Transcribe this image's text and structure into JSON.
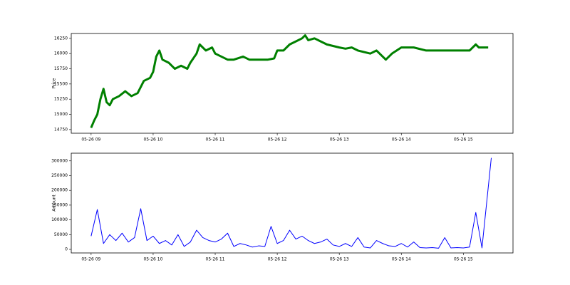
{
  "chart_data": [
    {
      "type": "line",
      "y_label": "Price",
      "x": [
        9.0,
        9.05,
        9.1,
        9.15,
        9.2,
        9.25,
        9.3,
        9.35,
        9.45,
        9.55,
        9.65,
        9.75,
        9.85,
        9.95,
        10.0,
        10.05,
        10.1,
        10.15,
        10.25,
        10.35,
        10.45,
        10.55,
        10.6,
        10.7,
        10.75,
        10.85,
        10.95,
        11.0,
        11.1,
        11.2,
        11.3,
        11.45,
        11.55,
        11.7,
        11.85,
        11.95,
        12.0,
        12.1,
        12.2,
        12.3,
        12.4,
        12.45,
        12.5,
        12.6,
        12.7,
        12.8,
        13.0,
        13.1,
        13.2,
        13.3,
        13.5,
        13.6,
        13.75,
        13.85,
        14.0,
        14.2,
        14.4,
        14.6,
        14.8,
        15.0,
        15.1,
        15.2,
        15.25,
        15.4
      ],
      "series": [
        {
          "color": "#008000",
          "values": [
            14780,
            14900,
            15000,
            15250,
            15420,
            15200,
            15150,
            15250,
            15300,
            15380,
            15300,
            15350,
            15550,
            15600,
            15700,
            15950,
            16050,
            15900,
            15850,
            15750,
            15800,
            15750,
            15850,
            16000,
            16150,
            16050,
            16100,
            16000,
            15950,
            15900,
            15900,
            15950,
            15900,
            15900,
            15900,
            15920,
            16050,
            16050,
            16150,
            16200,
            16250,
            16300,
            16220,
            16250,
            16200,
            16150,
            16100,
            16080,
            16100,
            16050,
            16000,
            16050,
            15900,
            16000,
            16100,
            16100,
            16050,
            16050,
            16050,
            16050,
            16050,
            16150,
            16100,
            16100
          ]
        }
      ],
      "xlim": [
        8.68,
        15.8
      ],
      "ylim": [
        14690,
        16330
      ],
      "xticks": [
        {
          "value": 9,
          "label": "05-26 09"
        },
        {
          "value": 10,
          "label": "05-26 10"
        },
        {
          "value": 11,
          "label": "05-26 11"
        },
        {
          "value": 12,
          "label": "05-26 12"
        },
        {
          "value": 13,
          "label": "05-26 13"
        },
        {
          "value": 14,
          "label": "05-26 14"
        },
        {
          "value": 15,
          "label": "05-26 15"
        }
      ],
      "yticks": [
        14750,
        15000,
        15250,
        15500,
        15750,
        16000,
        16250
      ]
    },
    {
      "type": "line",
      "y_label": "Amount",
      "x": [
        9.0,
        9.1,
        9.2,
        9.3,
        9.4,
        9.5,
        9.6,
        9.7,
        9.8,
        9.9,
        10.0,
        10.1,
        10.2,
        10.3,
        10.4,
        10.5,
        10.6,
        10.7,
        10.8,
        10.9,
        11.0,
        11.1,
        11.2,
        11.3,
        11.4,
        11.5,
        11.6,
        11.7,
        11.8,
        11.9,
        12.0,
        12.1,
        12.2,
        12.3,
        12.4,
        12.5,
        12.6,
        12.7,
        12.8,
        12.9,
        13.0,
        13.1,
        13.2,
        13.3,
        13.4,
        13.5,
        13.6,
        13.7,
        13.8,
        13.9,
        14.0,
        14.1,
        14.2,
        14.3,
        14.4,
        14.5,
        14.6,
        14.7,
        14.8,
        14.9,
        15.0,
        15.1,
        15.2,
        15.3,
        15.45
      ],
      "series": [
        {
          "color": "#0000ff",
          "values": [
            45000,
            135000,
            20000,
            50000,
            30000,
            55000,
            25000,
            40000,
            138000,
            30000,
            45000,
            20000,
            30000,
            15000,
            50000,
            10000,
            25000,
            65000,
            40000,
            30000,
            25000,
            35000,
            55000,
            10000,
            20000,
            15000,
            8000,
            12000,
            10000,
            78000,
            20000,
            30000,
            65000,
            35000,
            45000,
            30000,
            20000,
            25000,
            35000,
            15000,
            10000,
            20000,
            10000,
            40000,
            8000,
            5000,
            30000,
            20000,
            12000,
            10000,
            20000,
            8000,
            25000,
            6000,
            5000,
            6000,
            4000,
            40000,
            5000,
            6000,
            5000,
            8000,
            125000,
            5000,
            310000
          ]
        }
      ],
      "xlim": [
        8.68,
        15.8
      ],
      "ylim": [
        -12000,
        326000
      ],
      "xticks": [
        {
          "value": 9,
          "label": "05-26 09"
        },
        {
          "value": 10,
          "label": "05-26 10"
        },
        {
          "value": 11,
          "label": "05-26 11"
        },
        {
          "value": 12,
          "label": "05-26 12"
        },
        {
          "value": 13,
          "label": "05-26 13"
        },
        {
          "value": 14,
          "label": "05-26 14"
        },
        {
          "value": 15,
          "label": "05-26 15"
        }
      ],
      "yticks": [
        0,
        50000,
        100000,
        150000,
        200000,
        250000,
        300000
      ]
    }
  ]
}
